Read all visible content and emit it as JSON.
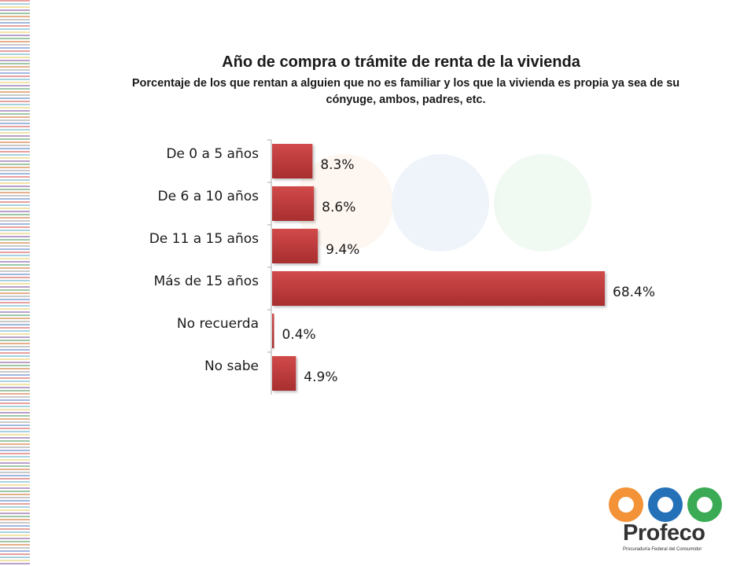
{
  "title": "Año de compra o trámite de renta de la vivienda",
  "subtitle": "Porcentaje de los que rentan a alguien que no es familiar y los que la vivienda es propia ya sea de su cónyuge, ambos, padres, etc.",
  "colors": {
    "bar": "#c0393a",
    "bar_dark": "#a82e2f",
    "axis": "#aaaaaa",
    "logo_orange": "#f39237",
    "logo_blue": "#2471b8",
    "logo_green": "#3aaa55"
  },
  "chart_data": {
    "type": "bar",
    "orientation": "horizontal",
    "categories": [
      "De 0 a 5 años",
      "De 6 a 10 años",
      "De 11 a 15 años",
      "Más de 15 años",
      "No recuerda",
      "No sabe"
    ],
    "values": [
      8.3,
      8.6,
      9.4,
      68.4,
      0.4,
      4.9
    ],
    "value_labels": [
      "8.3%",
      "8.6%",
      "9.4%",
      "68.4%",
      "0.4%",
      "4.9%"
    ],
    "xlim": [
      0,
      70
    ],
    "grid": false,
    "legend": "none"
  },
  "logo": {
    "name": "Profeco",
    "tagline": "Procuraduría Federal del Consumidor"
  }
}
